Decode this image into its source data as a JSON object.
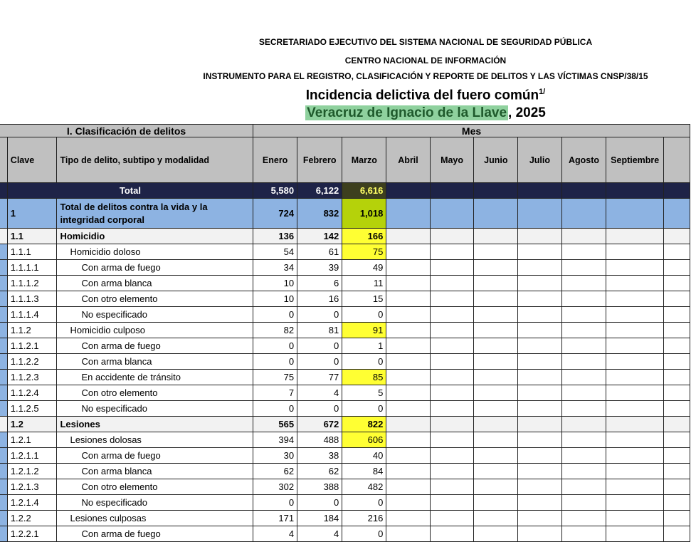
{
  "header": {
    "line1": "SECRETARIADO EJECUTIVO DEL SISTEMA NACIONAL DE SEGURIDAD PÚBLICA",
    "line2": "CENTRO NACIONAL DE INFORMACIÓN",
    "line3": "INSTRUMENTO PARA EL REGISTRO, CLASIFICACIÓN Y REPORTE DE DELITOS Y LAS VÍCTIMAS CNSP/38/15",
    "title": "Incidencia delictiva del fuero común",
    "title_sup": "1/",
    "state": "Veracruz de Ignacio de la Llave",
    "year": ", 2025"
  },
  "highlight_colors": {
    "yellow": "#ffff33",
    "green": "#b5d20a",
    "state": "#8fd19e"
  },
  "table": {
    "section_left": "I. Clasificación de delitos",
    "section_right": "Mes",
    "columns": {
      "clave": "Clave",
      "tipo": "Tipo de delito, subtipo y modalidad",
      "months": [
        "Enero",
        "Febrero",
        "Marzo",
        "Abril",
        "Mayo",
        "Junio",
        "Julio",
        "Agosto",
        "Septiembre"
      ]
    },
    "rows": [
      {
        "clave": "",
        "tipo": "Total",
        "level": "total",
        "values": [
          "5,580",
          "6,122",
          "6,616"
        ],
        "highlight": "dark"
      },
      {
        "clave": "1",
        "tipo": "Total de delitos contra la vida y la integridad corporal",
        "level": "lvl0",
        "values": [
          "724",
          "832",
          "1,018"
        ],
        "highlight": "green"
      },
      {
        "clave": "1.1",
        "tipo": "Homicidio",
        "level": "lvl1",
        "values": [
          "136",
          "142",
          "166"
        ],
        "highlight": "yellow"
      },
      {
        "clave": "1.1.1",
        "tipo": "Homicidio doloso",
        "level": "i1",
        "values": [
          "54",
          "61",
          "75"
        ],
        "highlight": "yellow"
      },
      {
        "clave": "1.1.1.1",
        "tipo": "Con arma de fuego",
        "level": "i2",
        "values": [
          "34",
          "39",
          "49"
        ]
      },
      {
        "clave": "1.1.1.2",
        "tipo": "Con arma blanca",
        "level": "i2",
        "values": [
          "10",
          "6",
          "11"
        ]
      },
      {
        "clave": "1.1.1.3",
        "tipo": "Con otro elemento",
        "level": "i2",
        "values": [
          "10",
          "16",
          "15"
        ]
      },
      {
        "clave": "1.1.1.4",
        "tipo": "No especificado",
        "level": "i2",
        "values": [
          "0",
          "0",
          "0"
        ]
      },
      {
        "clave": "1.1.2",
        "tipo": "Homicidio culposo",
        "level": "i1",
        "values": [
          "82",
          "81",
          "91"
        ],
        "highlight": "yellow"
      },
      {
        "clave": "1.1.2.1",
        "tipo": "Con arma de fuego",
        "level": "i2",
        "values": [
          "0",
          "0",
          "1"
        ]
      },
      {
        "clave": "1.1.2.2",
        "tipo": "Con arma blanca",
        "level": "i2",
        "values": [
          "0",
          "0",
          "0"
        ]
      },
      {
        "clave": "1.1.2.3",
        "tipo": "En accidente de tránsito",
        "level": "i2",
        "values": [
          "75",
          "77",
          "85"
        ],
        "highlight": "yellow"
      },
      {
        "clave": "1.1.2.4",
        "tipo": "Con otro elemento",
        "level": "i2",
        "values": [
          "7",
          "4",
          "5"
        ]
      },
      {
        "clave": "1.1.2.5",
        "tipo": "No especificado",
        "level": "i2",
        "values": [
          "0",
          "0",
          "0"
        ]
      },
      {
        "clave": "1.2",
        "tipo": "Lesiones",
        "level": "lvl1",
        "values": [
          "565",
          "672",
          "822"
        ],
        "highlight": "yellow"
      },
      {
        "clave": "1.2.1",
        "tipo": "Lesiones dolosas",
        "level": "i1",
        "values": [
          "394",
          "488",
          "606"
        ],
        "highlight": "yellow"
      },
      {
        "clave": "1.2.1.1",
        "tipo": "Con arma de fuego",
        "level": "i2",
        "values": [
          "30",
          "38",
          "40"
        ]
      },
      {
        "clave": "1.2.1.2",
        "tipo": "Con arma blanca",
        "level": "i2",
        "values": [
          "62",
          "62",
          "84"
        ]
      },
      {
        "clave": "1.2.1.3",
        "tipo": "Con otro elemento",
        "level": "i2",
        "values": [
          "302",
          "388",
          "482"
        ]
      },
      {
        "clave": "1.2.1.4",
        "tipo": "No especificado",
        "level": "i2",
        "values": [
          "0",
          "0",
          "0"
        ]
      },
      {
        "clave": "1.2.2",
        "tipo": "Lesiones culposas",
        "level": "i1",
        "values": [
          "171",
          "184",
          "216"
        ]
      },
      {
        "clave": "1.2.2.1",
        "tipo": "Con arma de fuego",
        "level": "i2",
        "values": [
          "4",
          "4",
          "0"
        ]
      }
    ]
  }
}
